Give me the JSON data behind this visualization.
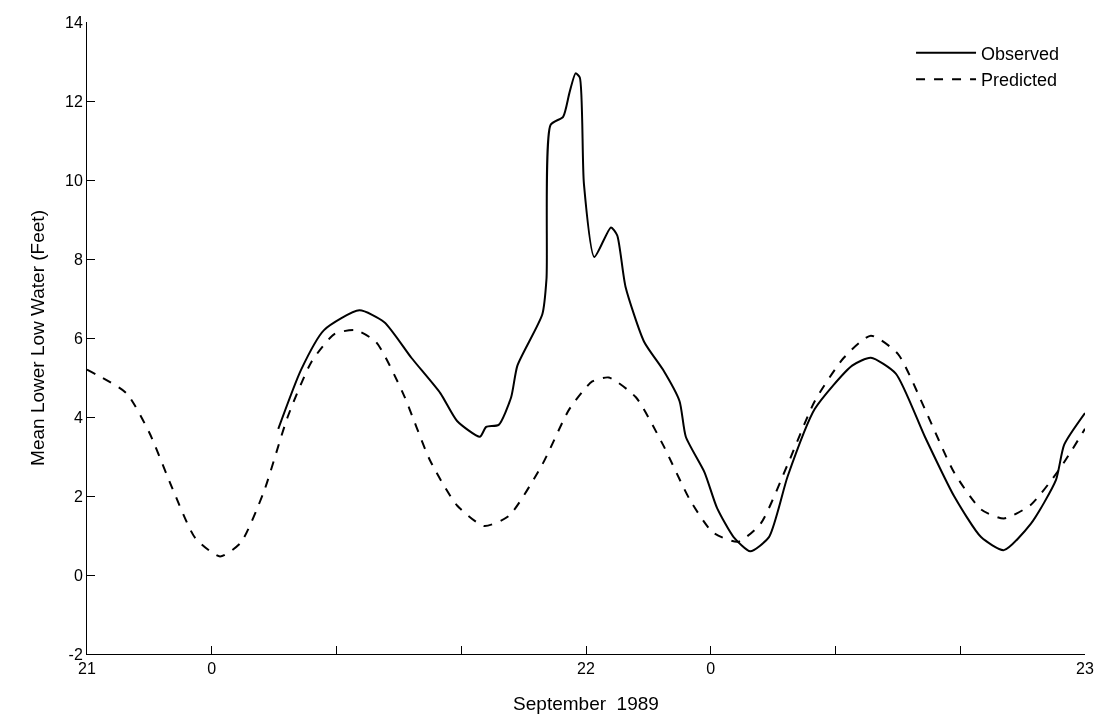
{
  "chart_data": {
    "type": "line",
    "xlabel": "September  1989",
    "ylabel": "Mean Lower Low Water (Feet)",
    "xlim": [
      "1989-09-21T00:00",
      "1989-09-23T00:00"
    ],
    "ylim": [
      -2,
      14
    ],
    "xticks": [
      {
        "value": "1989-09-21",
        "label": "21"
      },
      {
        "value": "1989-09-21T06:00",
        "label": "0"
      },
      {
        "value": "1989-09-21T12:00",
        "label": null
      },
      {
        "value": "1989-09-21T18:00",
        "label": null
      },
      {
        "value": "1989-09-22",
        "label": "22"
      },
      {
        "value": "1989-09-22T06:00",
        "label": "0"
      },
      {
        "value": "1989-09-22T12:00",
        "label": null
      },
      {
        "value": "1989-09-22T18:00",
        "label": null
      },
      {
        "value": "1989-09-23",
        "label": "23"
      }
    ],
    "yticks": [
      -2,
      0,
      2,
      4,
      6,
      8,
      10,
      12,
      14
    ],
    "legend": "top right",
    "marker": "none",
    "series": [
      {
        "name": "Observed",
        "color": "#000000",
        "line_style": "solid",
        "x": [
          "1989-09-21T09:12",
          "1989-09-21T10:18",
          "1989-09-21T11:24",
          "1989-09-21T13:06",
          "1989-09-21T14:18",
          "1989-09-21T15:36",
          "1989-09-21T17:00",
          "1989-09-21T17:48",
          "1989-09-21T18:54",
          "1989-09-21T19:12",
          "1989-09-21T19:48",
          "1989-09-21T20:24",
          "1989-09-21T20:42",
          "1989-09-21T21:54",
          "1989-09-21T22:06",
          "1989-09-21T22:18",
          "1989-09-21T22:54",
          "1989-09-21T23:12",
          "1989-09-21T23:30",
          "1989-09-21T23:42",
          "1989-09-21T23:54",
          "1989-09-22T00:24",
          "1989-09-22T01:12",
          "1989-09-22T01:30",
          "1989-09-22T01:54",
          "1989-09-22T02:48",
          "1989-09-22T03:42",
          "1989-09-22T04:30",
          "1989-09-22T04:48",
          "1989-09-22T05:42",
          "1989-09-22T06:18",
          "1989-09-22T07:06",
          "1989-09-22T07:54",
          "1989-09-22T08:48",
          "1989-09-22T09:42",
          "1989-09-22T11:00",
          "1989-09-22T12:48",
          "1989-09-22T13:42",
          "1989-09-22T14:54",
          "1989-09-22T16:18",
          "1989-09-22T17:42",
          "1989-09-22T19:00",
          "1989-09-22T20:06",
          "1989-09-22T21:24",
          "1989-09-22T22:36",
          "1989-09-22T23:00",
          "1989-09-23T00:00"
        ],
        "values": [
          3.7,
          5.2,
          6.2,
          6.7,
          6.4,
          5.5,
          4.6,
          3.9,
          3.5,
          3.75,
          3.8,
          4.5,
          5.3,
          6.6,
          7.5,
          11.4,
          11.6,
          12.2,
          12.7,
          12.6,
          9.9,
          8.05,
          8.8,
          8.6,
          7.3,
          5.9,
          5.2,
          4.4,
          3.5,
          2.6,
          1.7,
          0.96,
          0.6,
          0.96,
          2.5,
          4.2,
          5.3,
          5.5,
          5.1,
          3.5,
          2.0,
          0.96,
          0.63,
          1.3,
          2.4,
          3.3,
          4.1
        ]
      },
      {
        "name": "Predicted",
        "color": "#000000",
        "line_style": "dashed",
        "x": [
          "1989-09-21T00:00",
          "1989-09-21T01:54",
          "1989-09-21T03:00",
          "1989-09-21T04:06",
          "1989-09-21T05:12",
          "1989-09-21T06:24",
          "1989-09-21T07:24",
          "1989-09-21T08:30",
          "1989-09-21T09:39",
          "1989-09-21T10:48",
          "1989-09-21T11:54",
          "1989-09-21T12:54",
          "1989-09-21T13:54",
          "1989-09-21T15:12",
          "1989-09-21T16:30",
          "1989-09-21T17:48",
          "1989-09-21T19:06",
          "1989-09-21T20:18",
          "1989-09-21T21:54",
          "1989-09-21T23:12",
          "1989-09-22T00:18",
          "1989-09-22T01:06",
          "1989-09-22T02:24",
          "1989-09-22T03:42",
          "1989-09-22T05:00",
          "1989-09-22T06:06",
          "1989-09-22T07:18",
          "1989-09-22T08:24",
          "1989-09-22T09:42",
          "1989-09-22T11:00",
          "1989-09-22T12:24",
          "1989-09-22T13:42",
          "1989-09-22T15:00",
          "1989-09-22T16:18",
          "1989-09-22T17:42",
          "1989-09-22T19:00",
          "1989-09-22T20:06",
          "1989-09-22T21:24",
          "1989-09-22T22:48",
          "1989-09-23T00:00"
        ],
        "values": [
          5.2,
          4.6,
          3.6,
          2.2,
          0.94,
          0.47,
          0.82,
          2.1,
          4.0,
          5.4,
          6.1,
          6.2,
          5.9,
          4.6,
          2.9,
          1.76,
          1.24,
          1.5,
          2.8,
          4.2,
          4.9,
          5.0,
          4.5,
          3.3,
          1.9,
          1.08,
          0.84,
          1.3,
          2.8,
          4.4,
          5.5,
          6.06,
          5.6,
          4.2,
          2.6,
          1.66,
          1.43,
          1.78,
          2.7,
          3.7
        ]
      }
    ]
  }
}
